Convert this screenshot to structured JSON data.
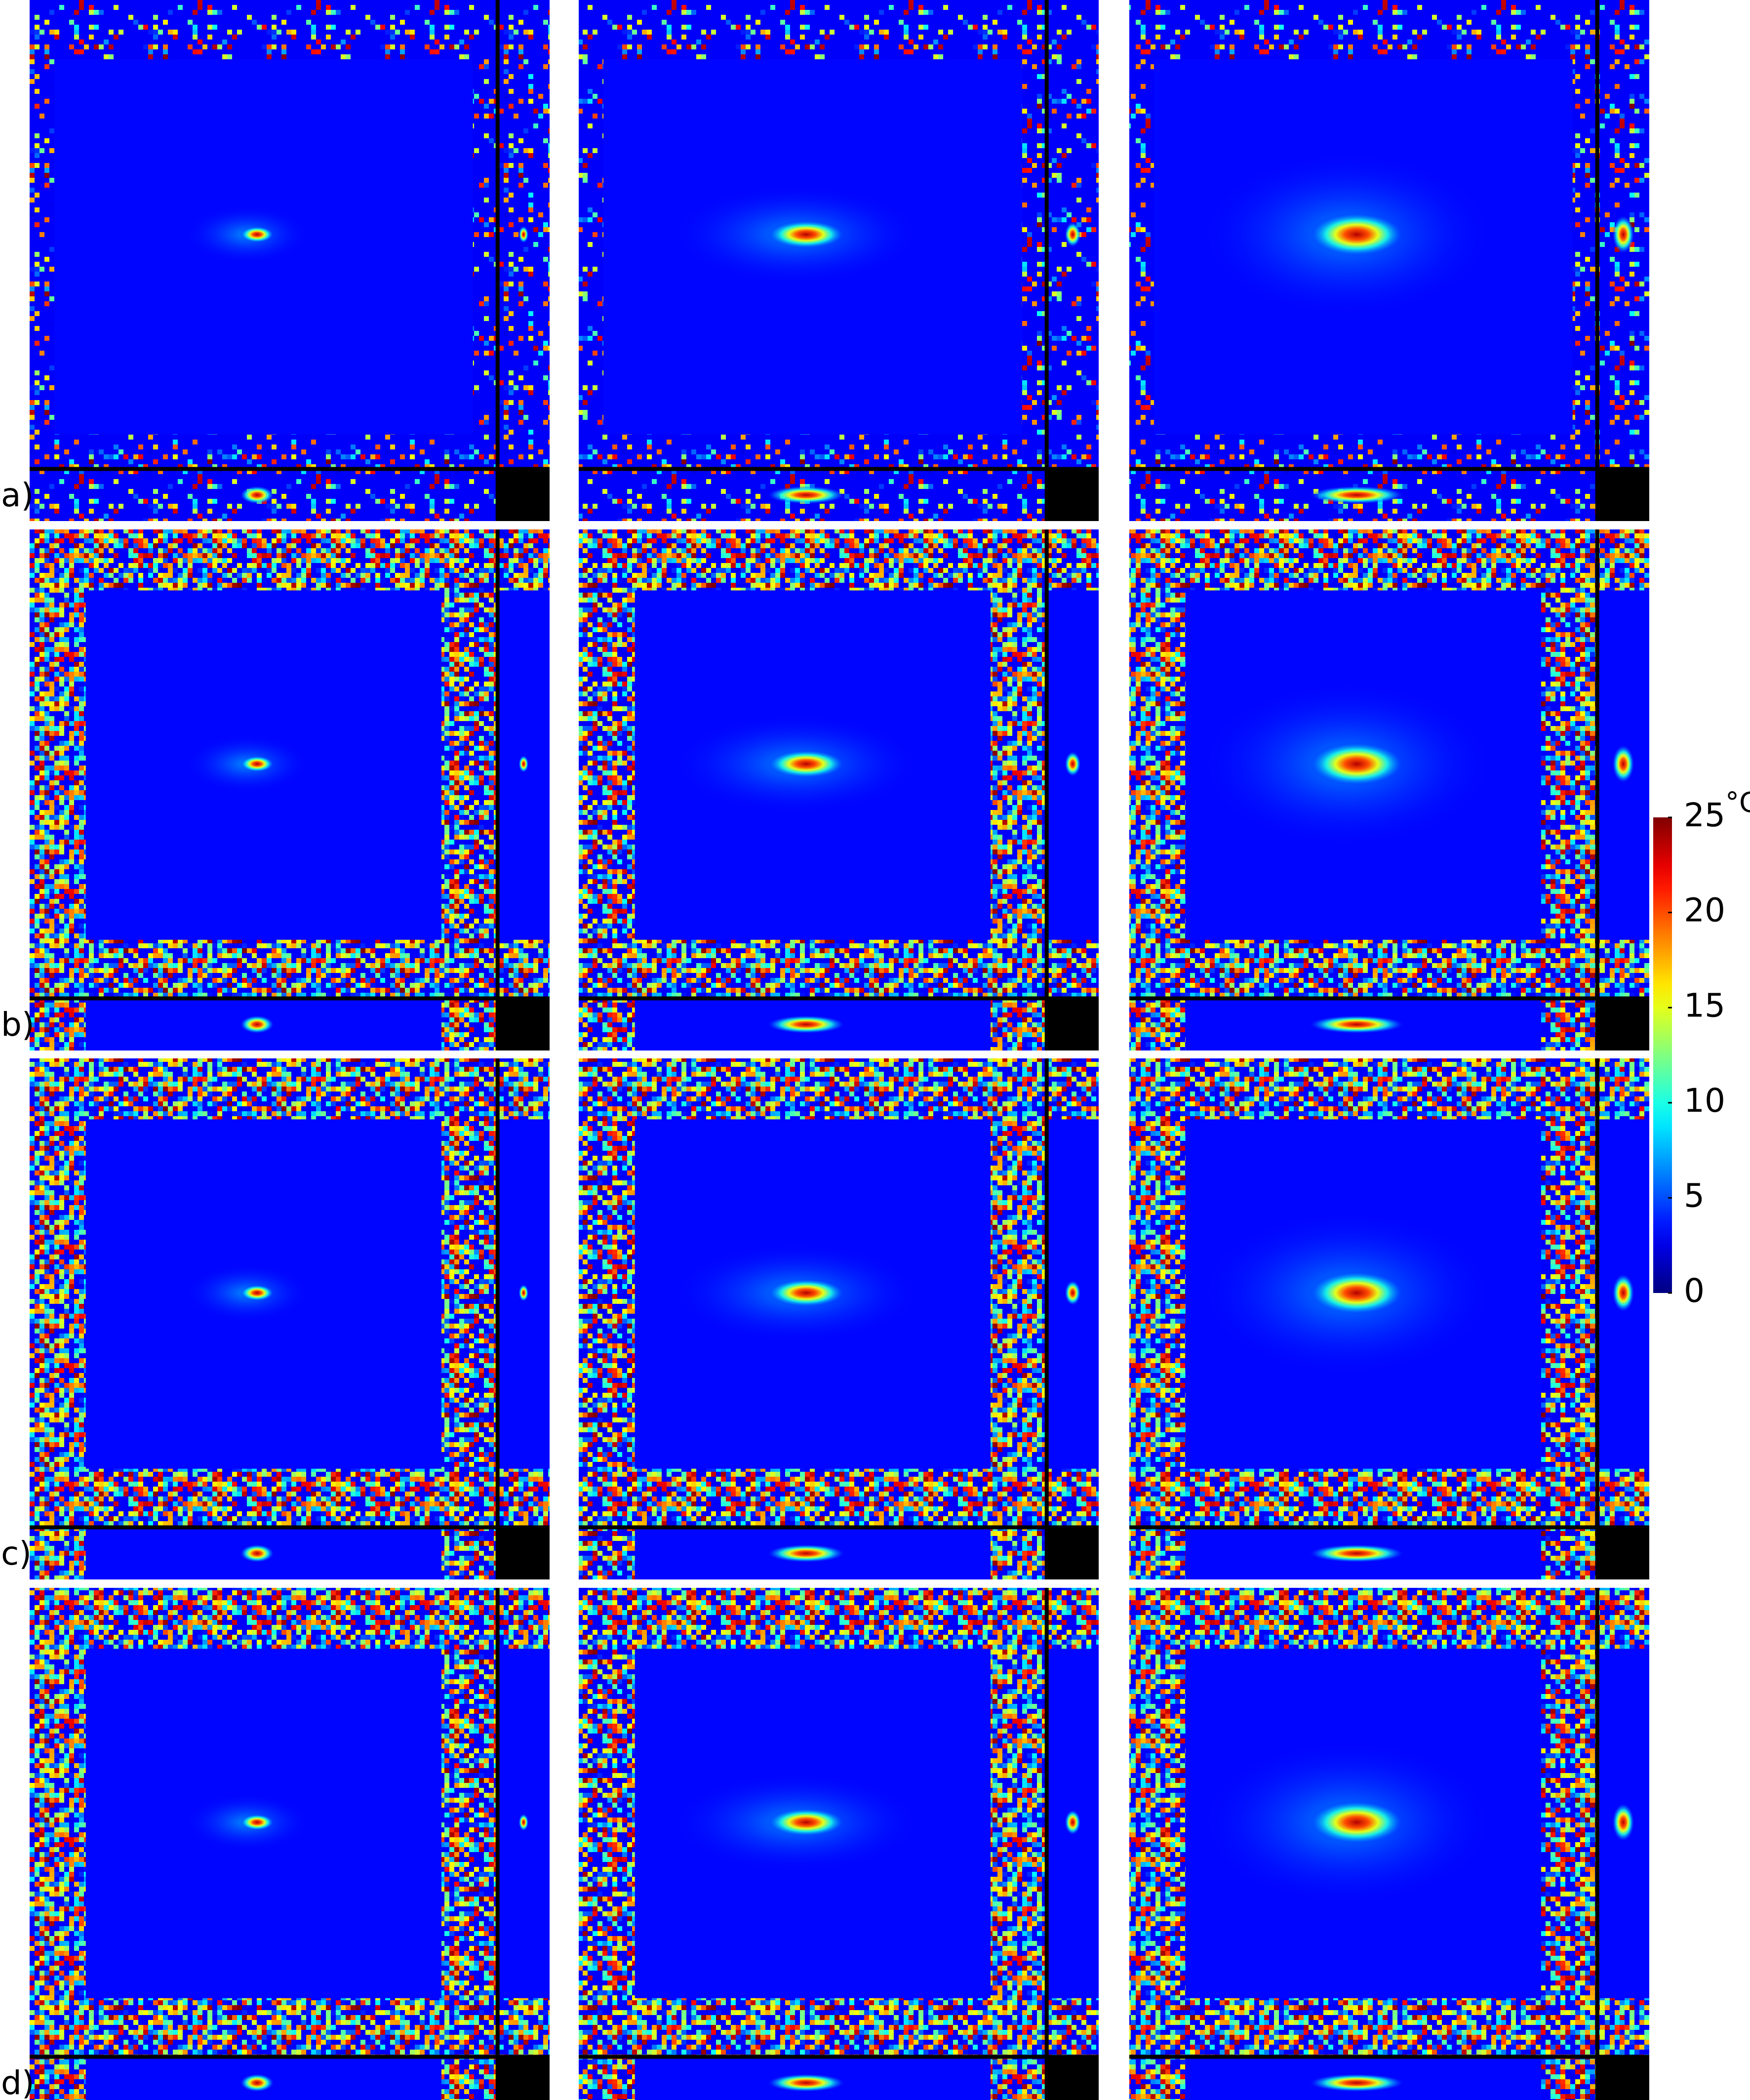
{
  "panel_labels": [
    "a)",
    "b)",
    "c)",
    "d)"
  ],
  "colorbar": {
    "range": [
      0,
      25
    ],
    "ticks": [
      0,
      5,
      10,
      15,
      20,
      25
    ],
    "unit": "°C"
  }
}
